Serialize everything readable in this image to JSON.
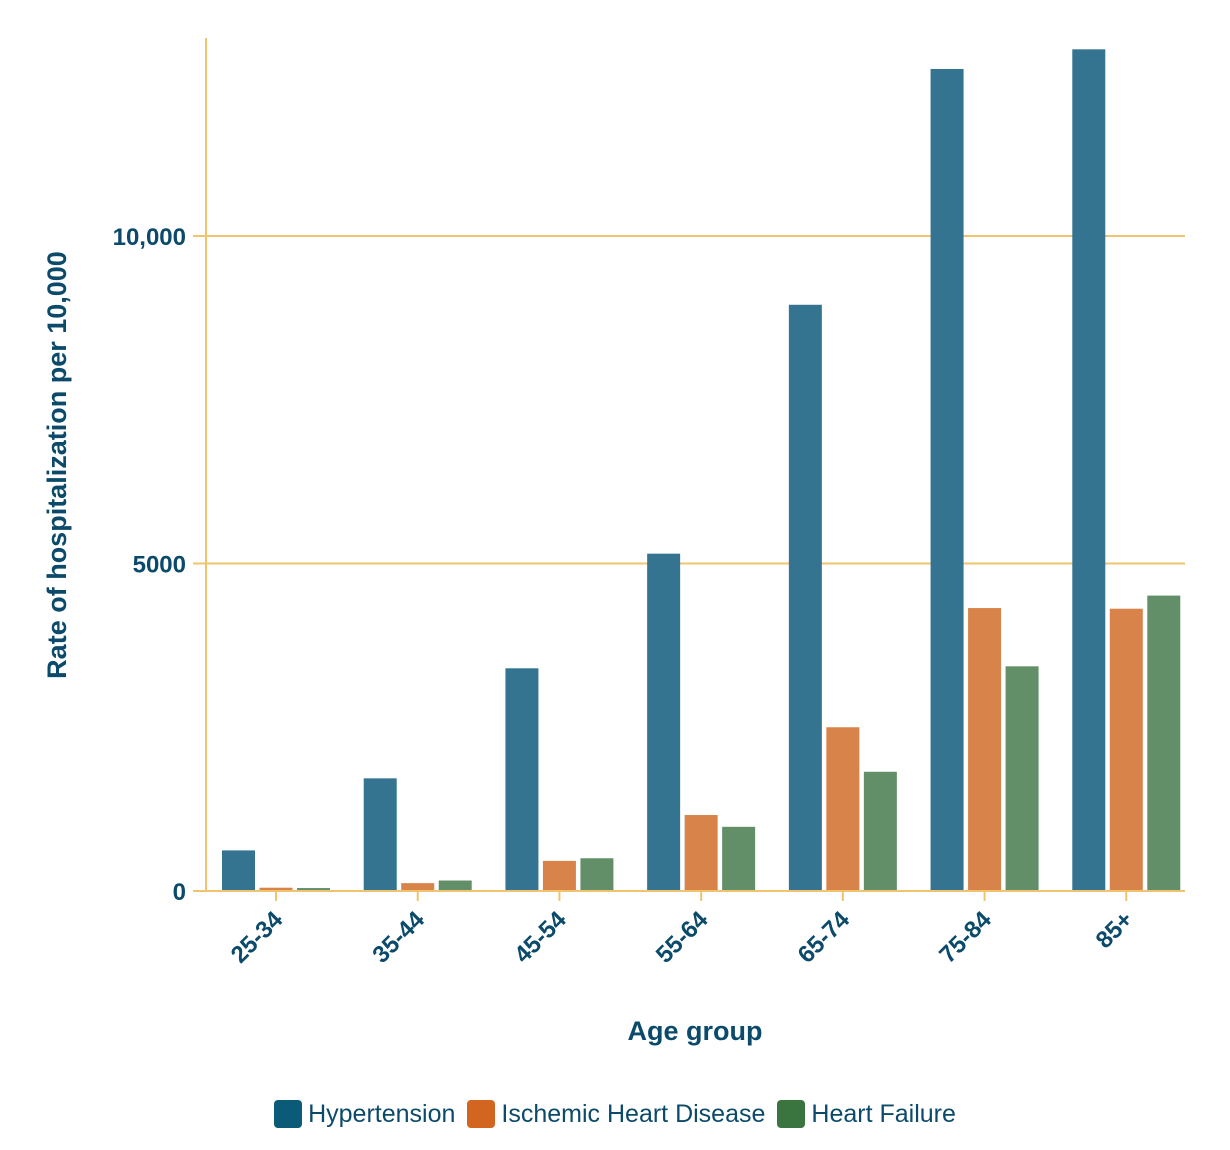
{
  "chart_data": {
    "type": "bar",
    "title": "",
    "xlabel": "Age group",
    "ylabel": "Rate of hospitalization per 10,000",
    "categories": [
      "25-34",
      "35-44",
      "45-54",
      "55-64",
      "65-74",
      "75-84",
      "85+"
    ],
    "series": [
      {
        "name": "Hypertension",
        "color": "#0b5a77",
        "bar_color": "#357490",
        "values": [
          620,
          1720,
          3400,
          5150,
          8950,
          12550,
          12850
        ]
      },
      {
        "name": "Ischemic Heart Disease",
        "color": "#d2651f",
        "bar_color": "#d8834a",
        "values": [
          50,
          120,
          460,
          1160,
          2500,
          4320,
          4310
        ]
      },
      {
        "name": "Heart Failure",
        "color": "#3a7540",
        "bar_color": "#628f68",
        "values": [
          45,
          160,
          500,
          980,
          1820,
          3430,
          4510
        ]
      }
    ],
    "ylim": [
      0,
      13000
    ],
    "yticks": [
      0,
      5000,
      10000
    ],
    "ytick_labels": [
      "0",
      "5000",
      "10,000"
    ],
    "grid": true,
    "grid_color": "#f0c46f",
    "legend_position": "bottom"
  }
}
